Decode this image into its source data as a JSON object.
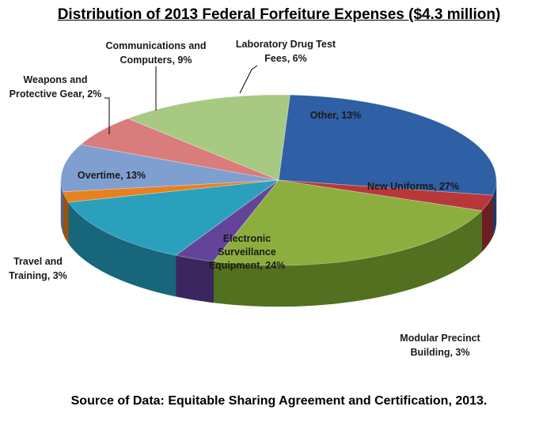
{
  "chart_data": {
    "type": "pie",
    "title": "Distribution of 2013 Federal Forfeiture Expenses ($4.3 million)",
    "source": "Source of Data: Equitable Sharing Agreement  and Certification, 2013.",
    "slices": [
      {
        "label": "New Uniforms, 27%",
        "value": 27,
        "color": "#2f5fa5",
        "side": "#1c3b6b"
      },
      {
        "label": "Modular Precinct Building, 3%",
        "value": 3,
        "color": "#b8383a",
        "side": "#6e1e20"
      },
      {
        "label": "Electronic Surveillance Equipment, 24%",
        "value": 24,
        "color": "#8cae3e",
        "side": "#52701f"
      },
      {
        "label": "Travel and Training, 3%",
        "value": 3,
        "color": "#64449a",
        "side": "#3b275e"
      },
      {
        "label": "Overtime, 13%",
        "value": 13,
        "color": "#2aa0bd",
        "side": "#17667a"
      },
      {
        "label": "Weapons and Protective Gear, 2%",
        "value": 2,
        "color": "#e7801f",
        "side": "#9a5210"
      },
      {
        "label": "Communications and Computers, 9%",
        "value": 9,
        "color": "#7f9fd0",
        "side": "#4d6797"
      },
      {
        "label": "Laboratory Drug Test Fees, 6%",
        "value": 6,
        "color": "#d97c7c",
        "side": "#8e4545"
      },
      {
        "label": "Other, 13%",
        "value": 13,
        "color": "#a8c982",
        "side": "#6d8a4c"
      }
    ]
  },
  "labels": {
    "new_uniforms": "New Uniforms, 27%",
    "modular_1": "Modular Precinct",
    "modular_2": "Building, 3%",
    "esurv_1": "Electronic",
    "esurv_2": "Surveillance",
    "esurv_3": "Equipment, 24%",
    "travel_1": "Travel and",
    "travel_2": "Training, 3%",
    "overtime": "Overtime, 13%",
    "weapons_1": "Weapons and",
    "weapons_2": "Protective Gear, 2%",
    "comms_1": "Communications and",
    "comms_2": "Computers, 9%",
    "lab_1": "Laboratory  Drug Test",
    "lab_2": "Fees, 6%",
    "other": "Other, 13%"
  }
}
